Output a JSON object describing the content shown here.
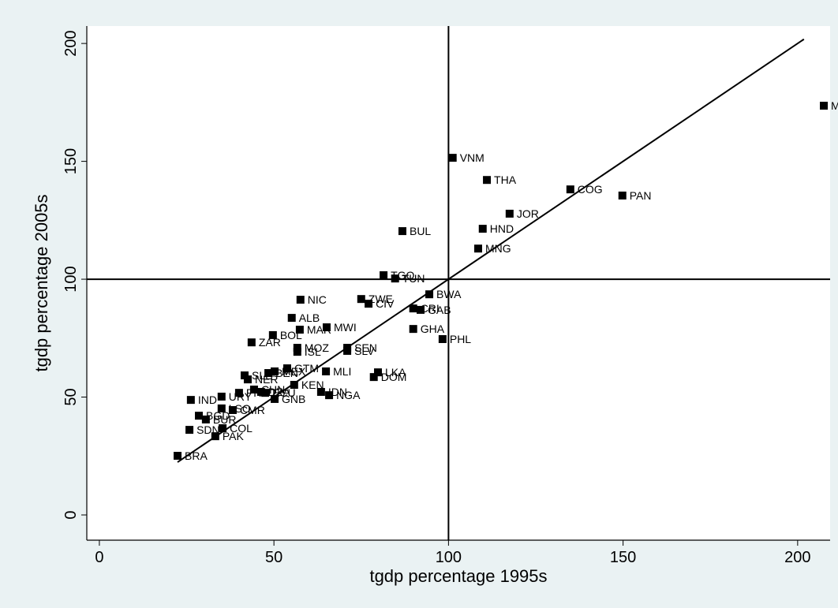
{
  "chart_data": {
    "type": "scatter",
    "x_label": "tgdp percentage 1995s",
    "y_label": "tgdp percentage 2005s",
    "xlim": [
      -3.6,
      209.3
    ],
    "ylim": [
      -10.7,
      207.4
    ],
    "xticks": [
      0,
      50,
      100,
      150,
      200
    ],
    "yticks": [
      0,
      50,
      100,
      150,
      200
    ],
    "xline": 100,
    "yline": 100,
    "fit": {
      "x": [
        22.4,
        201.8
      ],
      "y": [
        22.4,
        201.8
      ],
      "color": "#000000"
    },
    "color": "#000000",
    "labels": [
      "MYS",
      "VNM",
      "THA",
      "COG",
      "PAN",
      "JOR",
      "HND",
      "BUL",
      "MNG",
      "TGO",
      "TUN",
      "BWA",
      "NIC",
      "ZWE",
      "CIV",
      "CRI",
      "GAB",
      "ALB",
      "MAR",
      "MWI",
      "GHA",
      "PHL",
      "BOL",
      "ZAR",
      "MOZ",
      "SEN",
      "ISL",
      "SLV",
      "GTM",
      "MLI",
      "SLE",
      "BEN",
      "MEX",
      "NER",
      "LKA",
      "DOM",
      "KEN",
      "IDN",
      "NGA",
      "PRY",
      "CHN",
      "DZA",
      "ECU",
      "GNB",
      "IND",
      "URY",
      "LSO",
      "CMR",
      "BGD",
      "BUR",
      "SDN",
      "COL",
      "PAK",
      "BRA"
    ],
    "x": [
      207.5,
      101.2,
      111.0,
      134.9,
      149.8,
      117.5,
      109.8,
      86.8,
      108.5,
      81.4,
      84.7,
      94.5,
      57.6,
      75.0,
      77.1,
      89.9,
      92.0,
      55.1,
      57.4,
      65.1,
      89.9,
      98.3,
      49.7,
      43.6,
      56.7,
      71.0,
      56.7,
      71.0,
      53.8,
      64.9,
      41.6,
      48.4,
      50.2,
      42.5,
      79.8,
      78.6,
      55.8,
      63.5,
      65.8,
      40.0,
      44.3,
      46.3,
      47.5,
      50.2,
      26.2,
      35.0,
      35.0,
      38.2,
      28.5,
      30.5,
      25.8,
      35.3,
      33.2,
      22.4
    ],
    "y": [
      173.6,
      151.5,
      142.1,
      138.1,
      135.5,
      127.8,
      121.4,
      120.4,
      113.0,
      101.7,
      100.3,
      93.6,
      91.3,
      91.6,
      89.6,
      87.6,
      87.0,
      83.6,
      78.6,
      79.6,
      78.9,
      74.6,
      76.3,
      73.2,
      70.9,
      70.9,
      69.2,
      69.6,
      62.2,
      60.9,
      59.2,
      60.2,
      60.9,
      57.5,
      60.5,
      58.5,
      55.2,
      52.2,
      50.8,
      51.8,
      53.2,
      52.2,
      51.8,
      49.2,
      48.8,
      50.2,
      45.2,
      44.5,
      42.1,
      40.5,
      36.1,
      36.8,
      33.4,
      25.1
    ]
  }
}
